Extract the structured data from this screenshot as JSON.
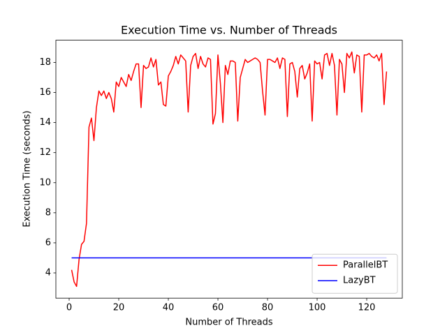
{
  "chart_data": {
    "type": "line",
    "title": "Execution Time vs. Number of Threads",
    "xlabel": "Number of Threads",
    "ylabel": "Execution Time (seconds)",
    "x": [
      1,
      2,
      3,
      4,
      5,
      6,
      7,
      8,
      9,
      10,
      11,
      12,
      13,
      14,
      15,
      16,
      17,
      18,
      19,
      20,
      21,
      22,
      23,
      24,
      25,
      26,
      27,
      28,
      29,
      30,
      31,
      32,
      33,
      34,
      35,
      36,
      37,
      38,
      39,
      40,
      41,
      42,
      43,
      44,
      45,
      46,
      47,
      48,
      49,
      50,
      51,
      52,
      53,
      54,
      55,
      56,
      57,
      58,
      59,
      60,
      61,
      62,
      63,
      64,
      65,
      66,
      67,
      68,
      69,
      70,
      71,
      72,
      73,
      74,
      75,
      76,
      77,
      78,
      79,
      80,
      81,
      82,
      83,
      84,
      85,
      86,
      87,
      88,
      89,
      90,
      91,
      92,
      93,
      94,
      95,
      96,
      97,
      98,
      99,
      100,
      101,
      102,
      103,
      104,
      105,
      106,
      107,
      108,
      109,
      110,
      111,
      112,
      113,
      114,
      115,
      116,
      117,
      118,
      119,
      120,
      121,
      122,
      123,
      124,
      125,
      126,
      127,
      128
    ],
    "series": [
      {
        "name": "ParallelBT",
        "color": "#ff0000",
        "values": [
          4.2,
          3.4,
          3.1,
          4.9,
          5.9,
          6.1,
          7.3,
          13.7,
          14.3,
          12.8,
          15.0,
          16.1,
          15.8,
          16.1,
          15.6,
          16.0,
          15.6,
          14.7,
          16.7,
          16.4,
          17.0,
          16.7,
          16.4,
          17.2,
          16.8,
          17.4,
          17.9,
          17.9,
          15.0,
          17.8,
          17.6,
          17.7,
          18.3,
          17.7,
          18.2,
          16.5,
          16.7,
          15.2,
          15.1,
          17.1,
          17.4,
          17.8,
          18.4,
          17.9,
          18.5,
          18.3,
          18.1,
          14.7,
          17.8,
          18.4,
          18.6,
          17.6,
          18.4,
          17.9,
          17.7,
          18.3,
          18.2,
          13.9,
          14.6,
          18.5,
          16.6,
          14.0,
          17.8,
          17.2,
          18.1,
          18.1,
          18.0,
          14.1,
          17.0,
          17.6,
          18.2,
          18.0,
          18.1,
          18.2,
          18.3,
          18.2,
          18.0,
          16.1,
          14.5,
          18.2,
          18.2,
          18.1,
          18.0,
          18.3,
          17.6,
          18.3,
          18.2,
          14.4,
          17.9,
          18.0,
          17.4,
          15.7,
          17.6,
          17.8,
          16.9,
          17.3,
          17.9,
          14.1,
          18.1,
          17.9,
          18.0,
          16.9,
          18.5,
          18.6,
          17.8,
          18.6,
          17.8,
          14.5,
          18.2,
          17.9,
          16.0,
          18.6,
          18.3,
          18.7,
          17.3,
          18.5,
          18.4,
          14.7,
          18.5,
          18.5,
          18.6,
          18.4,
          18.3,
          18.5,
          18.1,
          18.6,
          15.2,
          17.4
        ]
      },
      {
        "name": "LazyBT",
        "color": "#0000ff",
        "values": [
          5,
          5,
          5,
          5,
          5,
          5,
          5,
          5,
          5,
          5,
          5,
          5,
          5,
          5,
          5,
          5,
          5,
          5,
          5,
          5,
          5,
          5,
          5,
          5,
          5,
          5,
          5,
          5,
          5,
          5,
          5,
          5,
          5,
          5,
          5,
          5,
          5,
          5,
          5,
          5,
          5,
          5,
          5,
          5,
          5,
          5,
          5,
          5,
          5,
          5,
          5,
          5,
          5,
          5,
          5,
          5,
          5,
          5,
          5,
          5,
          5,
          5,
          5,
          5,
          5,
          5,
          5,
          5,
          5,
          5,
          5,
          5,
          5,
          5,
          5,
          5,
          5,
          5,
          5,
          5,
          5,
          5,
          5,
          5,
          5,
          5,
          5,
          5,
          5,
          5,
          5,
          5,
          5,
          5,
          5,
          5,
          5,
          5,
          5,
          5,
          5,
          5,
          5,
          5,
          5,
          5,
          5,
          5,
          5,
          5,
          5,
          5,
          5,
          5,
          5,
          5,
          5,
          5,
          5,
          5,
          5,
          5,
          5,
          5,
          5,
          5,
          5,
          5
        ]
      }
    ],
    "xlim": [
      -5.35,
      134.35
    ],
    "ylim": [
      2.32,
      19.48
    ],
    "xticks": [
      0,
      20,
      40,
      60,
      80,
      100,
      120
    ],
    "yticks": [
      4,
      6,
      8,
      10,
      12,
      14,
      16,
      18
    ],
    "legend": "lower right"
  }
}
